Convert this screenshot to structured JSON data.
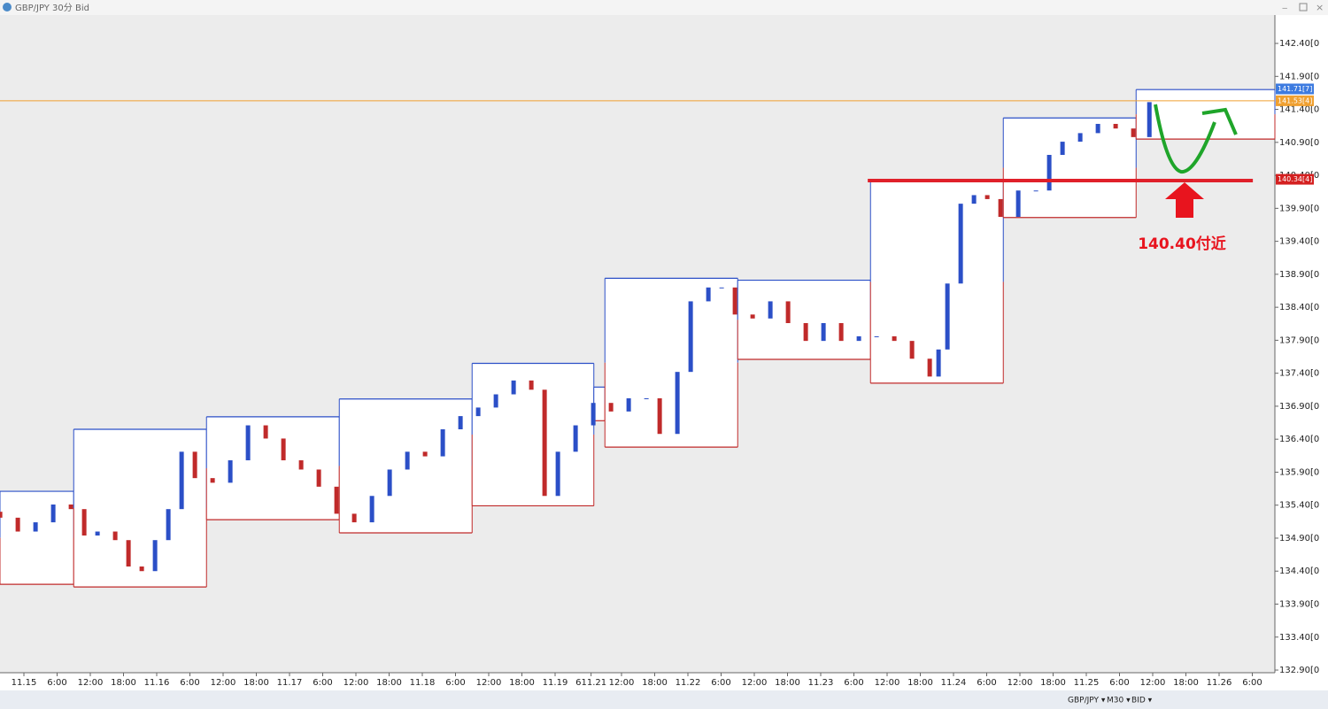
{
  "chart_data": {
    "type": "candlestick",
    "title": "GBP/JPY 30分 Bid",
    "xlim": [
      -4.32,
      226.08
    ],
    "ylim": [
      132.86,
      142.83
    ],
    "yticks": [
      {
        "value": 142.4,
        "label": "142.40[0"
      },
      {
        "value": 141.9,
        "label": "141.90[0"
      },
      {
        "value": 141.4,
        "label": "141.40[0"
      },
      {
        "value": 140.9,
        "label": "140.90[0"
      },
      {
        "value": 140.4,
        "label": "140.40[0"
      },
      {
        "value": 139.9,
        "label": "139.90[0"
      },
      {
        "value": 139.4,
        "label": "139.40[0"
      },
      {
        "value": 138.9,
        "label": "138.90[0"
      },
      {
        "value": 138.4,
        "label": "138.40[0"
      },
      {
        "value": 137.9,
        "label": "137.90[0"
      },
      {
        "value": 137.4,
        "label": "137.40[0"
      },
      {
        "value": 136.9,
        "label": "136.90[0"
      },
      {
        "value": 136.4,
        "label": "136.40[0"
      },
      {
        "value": 135.9,
        "label": "135.90[0"
      },
      {
        "value": 135.4,
        "label": "135.40[0"
      },
      {
        "value": 134.9,
        "label": "134.90[0"
      },
      {
        "value": 134.4,
        "label": "134.40[0"
      },
      {
        "value": 133.9,
        "label": "133.90[0"
      },
      {
        "value": 133.4,
        "label": "133.40[0"
      },
      {
        "value": 132.9,
        "label": "132.90[0"
      }
    ],
    "xticks": [
      {
        "value": 0,
        "label": "11.15"
      },
      {
        "value": 6,
        "label": "6:00"
      },
      {
        "value": 12,
        "label": "12:00"
      },
      {
        "value": 18,
        "label": "18:00"
      },
      {
        "value": 24,
        "label": "11.16"
      },
      {
        "value": 30,
        "label": "6:00"
      },
      {
        "value": 36,
        "label": "12:00"
      },
      {
        "value": 42,
        "label": "18:00"
      },
      {
        "value": 48,
        "label": "11.17"
      },
      {
        "value": 54,
        "label": "6:00"
      },
      {
        "value": 60,
        "label": "12:00"
      },
      {
        "value": 66,
        "label": "18:00"
      },
      {
        "value": 72,
        "label": "11.18"
      },
      {
        "value": 78,
        "label": "6:00"
      },
      {
        "value": 84,
        "label": "12:00"
      },
      {
        "value": 90,
        "label": "18:00"
      },
      {
        "value": 96,
        "label": "11.19"
      },
      {
        "value": 102.5,
        "label": "611.21"
      },
      {
        "value": 108,
        "label": "12:00"
      },
      {
        "value": 114,
        "label": "18:00"
      },
      {
        "value": 120,
        "label": "11.22"
      },
      {
        "value": 126,
        "label": "6:00"
      },
      {
        "value": 132,
        "label": "12:00"
      },
      {
        "value": 138,
        "label": "18:00"
      },
      {
        "value": 144,
        "label": "11.23"
      },
      {
        "value": 150,
        "label": "6:00"
      },
      {
        "value": 156,
        "label": "12:00"
      },
      {
        "value": 162,
        "label": "18:00"
      },
      {
        "value": 168,
        "label": "11.24"
      },
      {
        "value": 174,
        "label": "6:00"
      },
      {
        "value": 180,
        "label": "12:00"
      },
      {
        "value": 186,
        "label": "18:00"
      },
      {
        "value": 192,
        "label": "11.25"
      },
      {
        "value": 198,
        "label": "6:00"
      },
      {
        "value": 204,
        "label": "12:00"
      },
      {
        "value": 210,
        "label": "18:00"
      },
      {
        "value": 216,
        "label": "11.26"
      },
      {
        "value": 222,
        "label": "6:00"
      }
    ],
    "x": [
      -4.3,
      -1.1,
      2.1,
      5.3,
      8.5,
      10.9,
      13.3,
      16.5,
      18.9,
      21.3,
      23.7,
      26.1,
      28.5,
      30.9,
      34.1,
      37.3,
      40.5,
      43.7,
      46.9,
      50.1,
      53.3,
      56.5,
      59.7,
      62.9,
      66.1,
      69.3,
      72.5,
      75.7,
      78.9,
      82.1,
      85.3,
      88.5,
      91.7,
      94.1,
      96.5,
      99.7,
      102.9,
      106.1,
      109.3,
      112.5,
      114.9,
      118.1,
      120.5,
      123.7,
      126.1,
      128.5,
      131.7,
      134.9,
      138.1,
      141.3,
      144.5,
      147.7,
      150.9,
      154.1,
      157.3,
      160.5,
      163.7,
      165.3,
      166.9,
      169.3,
      171.7,
      174.1,
      176.5,
      179.7,
      182.9,
      185.3,
      187.7,
      190.9,
      194.1,
      197.3,
      200.5,
      203.4
    ],
    "open": [
      135.3,
      135.21,
      135.0,
      135.14,
      135.41,
      135.34,
      134.94,
      135.0,
      134.87,
      134.47,
      134.4,
      134.87,
      135.34,
      136.21,
      135.81,
      135.74,
      136.08,
      136.61,
      136.41,
      136.08,
      135.94,
      135.68,
      135.27,
      135.14,
      135.54,
      135.94,
      136.21,
      136.14,
      136.55,
      136.75,
      136.88,
      137.08,
      137.29,
      137.15,
      135.54,
      136.21,
      136.61,
      136.95,
      136.82,
      137.02,
      137.02,
      136.48,
      137.42,
      138.49,
      138.7,
      138.7,
      138.29,
      138.23,
      138.49,
      138.16,
      137.89,
      138.16,
      137.89,
      137.96,
      137.96,
      137.89,
      137.62,
      137.35,
      137.76,
      138.76,
      139.97,
      140.1,
      140.04,
      139.77,
      140.17,
      140.17,
      140.71,
      140.91,
      141.04,
      141.18,
      141.11,
      140.98
    ],
    "close": [
      135.21,
      135.0,
      135.14,
      135.41,
      135.34,
      134.94,
      135.0,
      134.87,
      134.47,
      134.4,
      134.87,
      135.34,
      136.21,
      135.81,
      135.74,
      136.08,
      136.61,
      136.41,
      136.08,
      135.94,
      135.68,
      135.27,
      135.14,
      135.54,
      135.94,
      136.21,
      136.14,
      136.55,
      136.75,
      136.88,
      137.08,
      137.29,
      137.15,
      135.54,
      136.21,
      136.61,
      136.95,
      136.82,
      137.02,
      137.02,
      136.48,
      137.42,
      138.49,
      138.7,
      138.7,
      138.29,
      138.23,
      138.49,
      138.16,
      137.89,
      138.16,
      137.89,
      137.96,
      137.96,
      137.89,
      137.62,
      137.35,
      137.76,
      138.76,
      139.97,
      140.1,
      140.04,
      139.77,
      140.17,
      140.17,
      140.71,
      140.91,
      141.04,
      141.18,
      141.11,
      140.98,
      141.51
    ],
    "up_color": "#2b4fc7",
    "down_color": "#c02a2a",
    "ranges": [
      {
        "x": [
          -4.32,
          9
        ],
        "high": 135.61,
        "low": 134.2
      },
      {
        "x": [
          9,
          33
        ],
        "high": 136.55,
        "low": 134.16
      },
      {
        "x": [
          33,
          57
        ],
        "high": 136.74,
        "low": 135.18
      },
      {
        "x": [
          57,
          81
        ],
        "high": 137.01,
        "low": 134.98
      },
      {
        "x": [
          81,
          103
        ],
        "high": 137.55,
        "low": 135.39
      },
      {
        "x": [
          103,
          105
        ],
        "high": 137.19,
        "low": 136.68
      },
      {
        "x": [
          105,
          129
        ],
        "high": 138.84,
        "low": 136.28
      },
      {
        "x": [
          129,
          153
        ],
        "high": 138.81,
        "low": 137.61
      },
      {
        "x": [
          153,
          177
        ],
        "high": 140.32,
        "low": 137.25
      },
      {
        "x": [
          177,
          201
        ],
        "high": 141.27,
        "low": 139.76
      },
      {
        "x": [
          201,
          226.08
        ],
        "high": 141.7,
        "low": 140.95
      }
    ],
    "price_tags": [
      {
        "value": 141.71,
        "label": "141.71[7]",
        "color": "#3d7be0"
      },
      {
        "value": 141.53,
        "label": "141.53[4]",
        "color": "#f0a030"
      },
      {
        "value": 140.34,
        "label": "140.34[4]",
        "color": "#d42020"
      }
    ],
    "bid_line": 141.53,
    "support_line": {
      "value": 140.32,
      "x": [
        152.5,
        222.1
      ],
      "color": "#e0202a"
    },
    "annotation": "140.40付近",
    "toolbar": [
      "GBP/JPY ▾",
      "M30 ▾",
      "BID ▾"
    ]
  }
}
